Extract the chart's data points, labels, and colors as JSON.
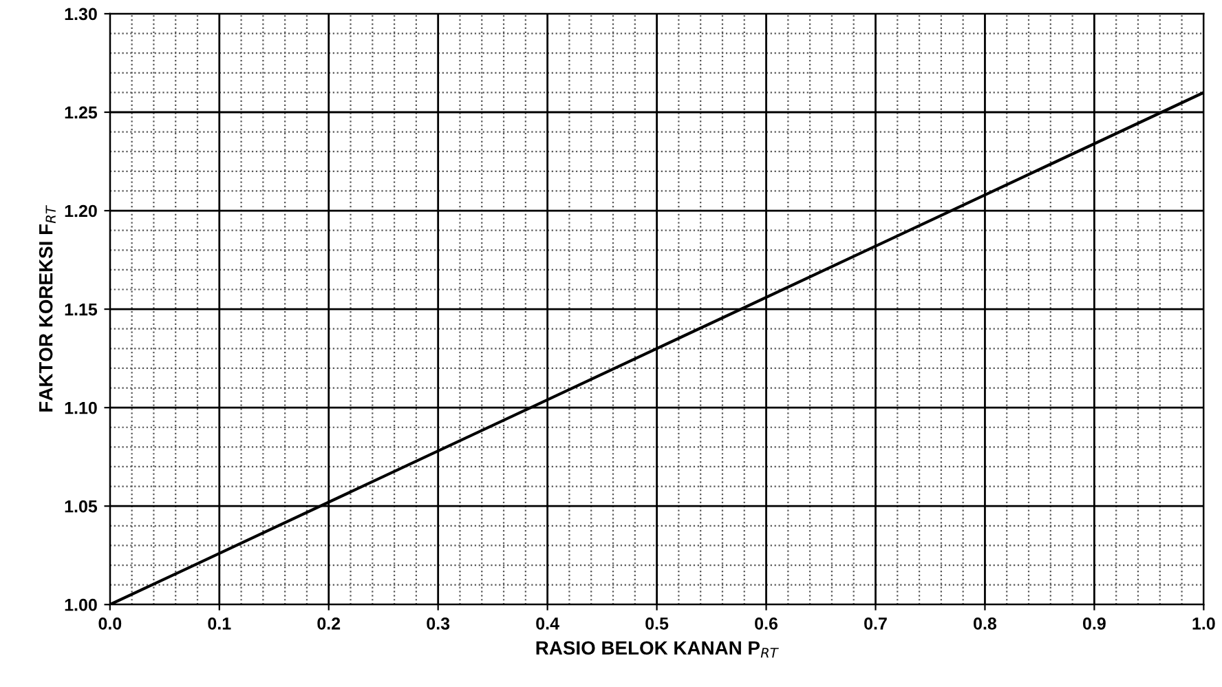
{
  "chart_data": {
    "type": "line",
    "xlabel": "RASIO BELOK KANAN P$_{RT}$",
    "ylabel": "FAKTOR KOREKSI F$_{RT}$",
    "x": [
      0,
      1
    ],
    "series": [
      {
        "color": "#000000",
        "values": [
          1.0,
          1.26
        ]
      }
    ],
    "xlim": [
      0,
      1
    ],
    "ylim": [
      1.0,
      1.3
    ],
    "xticks": [
      {
        "value": 0,
        "label": "0.0"
      },
      {
        "value": 0.1,
        "label": "0.1"
      },
      {
        "value": 0.2,
        "label": "0.2"
      },
      {
        "value": 0.3,
        "label": "0.3"
      },
      {
        "value": 0.4,
        "label": "0.4"
      },
      {
        "value": 0.5,
        "label": "0.5"
      },
      {
        "value": 0.6,
        "label": "0.6"
      },
      {
        "value": 0.7,
        "label": "0.7"
      },
      {
        "value": 0.8,
        "label": "0.8"
      },
      {
        "value": 0.9,
        "label": "0.9"
      },
      {
        "value": 1,
        "label": "1.0"
      }
    ],
    "yticks": [
      {
        "value": 1.0,
        "label": "1.00"
      },
      {
        "value": 1.05,
        "label": "1.05"
      },
      {
        "value": 1.1,
        "label": "1.10"
      },
      {
        "value": 1.15,
        "label": "1.15"
      },
      {
        "value": 1.2,
        "label": "1.20"
      },
      {
        "value": 1.25,
        "label": "1.25"
      },
      {
        "value": 1.3,
        "label": "1.30"
      }
    ],
    "grid": true,
    "marker": "none",
    "line_style": "solid"
  }
}
